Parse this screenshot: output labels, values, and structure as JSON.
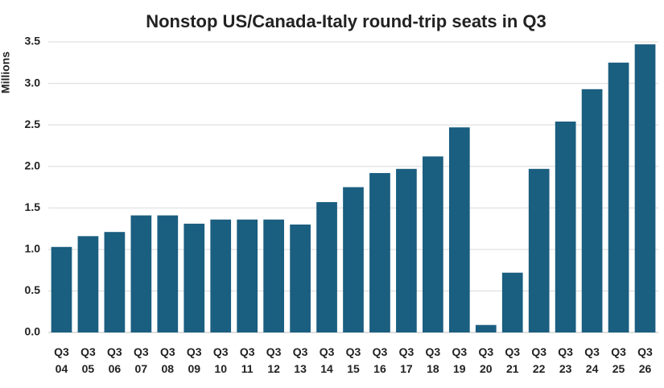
{
  "chart_data": {
    "type": "bar",
    "title": "Nonstop US/Canada-Italy round-trip seats in Q3",
    "y_label": "Millions",
    "categories": [
      "Q3 04",
      "Q3 05",
      "Q3 06",
      "Q3 07",
      "Q3 08",
      "Q3 09",
      "Q3 10",
      "Q3 11",
      "Q3 12",
      "Q3 13",
      "Q3 14",
      "Q3 15",
      "Q3 16",
      "Q3 17",
      "Q3 18",
      "Q3 19",
      "Q3 20",
      "Q3 21",
      "Q3 22",
      "Q3 23",
      "Q3 24",
      "Q3 25",
      "Q3 26"
    ],
    "values": [
      1.03,
      1.16,
      1.21,
      1.41,
      1.41,
      1.31,
      1.36,
      1.36,
      1.36,
      1.3,
      1.57,
      1.75,
      1.92,
      1.97,
      2.12,
      2.47,
      0.09,
      0.72,
      1.97,
      2.54,
      2.93,
      3.25,
      3.47
    ],
    "color": "#1a5e80",
    "ylim": [
      0,
      3.5
    ],
    "yticks": [
      {
        "value": 0,
        "label": "0.0"
      },
      0.5,
      {
        "value": 1,
        "label": "1.0"
      },
      1.5,
      {
        "value": 2,
        "label": "2.0"
      },
      2.5,
      {
        "value": 3,
        "label": "3.0"
      },
      3.5
    ],
    "grid": true
  }
}
